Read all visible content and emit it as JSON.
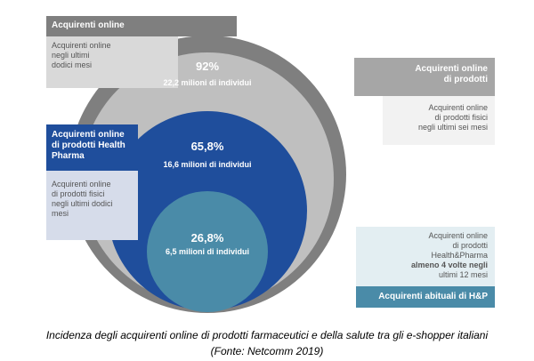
{
  "groups": [
    {
      "header": [
        "Acquirenti online"
      ],
      "description": [
        "Acquirenti online",
        "negli ultimi",
        "dodici mesi"
      ]
    },
    {
      "header": [
        "Acquirenti online",
        "di prodotti"
      ],
      "description": [
        "Acquirenti online",
        "di prodotti fisici",
        "negli ultimi sei mesi"
      ]
    },
    {
      "header": [
        "Acquirenti online",
        "di prodotti Health",
        "Pharma"
      ],
      "description": [
        "Acquirenti online",
        "di prodotti fisici",
        "negli ultimi dodici",
        "mesi"
      ]
    },
    {
      "header": [
        "Acquirenti abituali di H&P"
      ],
      "description": [
        "Acquirenti online",
        "di prodotti",
        "Health&Pharma",
        "almeno 4 volte negli",
        "ultimi 12 mesi"
      ]
    }
  ],
  "circles": [
    {
      "percent": "92%",
      "people": "22,2 milioni di individui"
    },
    {
      "percent": "65,8%",
      "people": "16,6 milioni di individui"
    },
    {
      "percent": "26,8%",
      "people": "6,5 milioni di individui"
    }
  ],
  "caption": [
    "Incidenza degli acquirenti online di prodotti farmaceutici e della salute  tra gli e-shopper italiani",
    "(Fonte: Netcomm 2019)"
  ]
}
